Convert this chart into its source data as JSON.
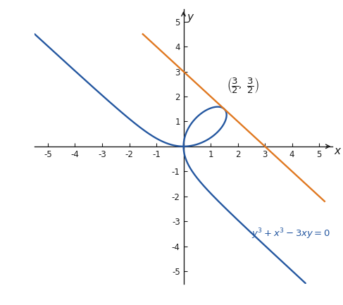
{
  "xlim": [
    -5.5,
    5.5
  ],
  "ylim": [
    -5.5,
    5.5
  ],
  "xticks": [
    -5,
    -4,
    -3,
    -2,
    -1,
    1,
    2,
    3,
    4,
    5
  ],
  "yticks": [
    -5,
    -4,
    -3,
    -2,
    -1,
    1,
    2,
    3,
    4,
    5
  ],
  "curve_color": "#2457a0",
  "tangent_color": "#e07820",
  "point_x": 1.5,
  "point_y": 1.5,
  "tangent_slope": -1.0,
  "tangent_intercept": 3.0,
  "background_color": "#ffffff",
  "axis_color": "#1a1a1a",
  "figsize": [
    4.87,
    4.33
  ],
  "dpi": 100
}
